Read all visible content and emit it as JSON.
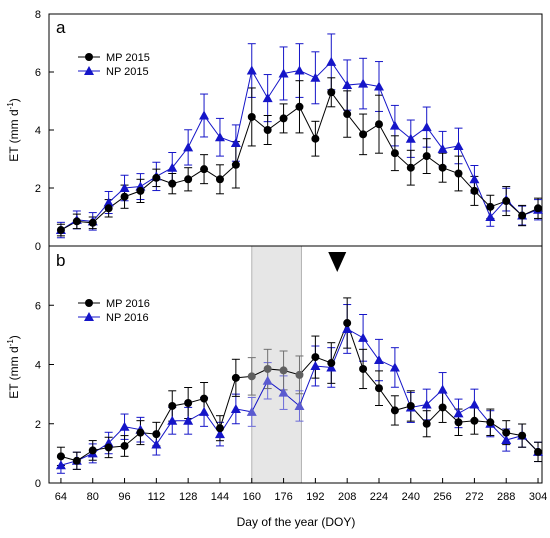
{
  "chart_data": [
    {
      "type": "line",
      "panel_label": "a",
      "ylabel": "ET (mm d-1)",
      "ylabel_main": "ET (mm d",
      "ylabel_sup": "-1",
      "ylabel_close": ")",
      "xlabel": "",
      "ylim": [
        0,
        8
      ],
      "yticks": [
        0,
        2,
        4,
        6,
        8
      ],
      "xlim": [
        58,
        306
      ],
      "legend_position": "top-left",
      "error_bars": true,
      "series": [
        {
          "name": "MP 2015",
          "color": "#000000",
          "marker": "circle",
          "x": [
            64,
            72,
            80,
            88,
            96,
            104,
            112,
            120,
            128,
            136,
            144,
            152,
            160,
            168,
            176,
            184,
            192,
            200,
            208,
            216,
            224,
            232,
            240,
            248,
            256,
            264,
            272,
            280,
            288,
            296,
            304
          ],
          "values": [
            0.55,
            0.85,
            0.8,
            1.3,
            1.7,
            1.9,
            2.35,
            2.15,
            2.3,
            2.65,
            2.3,
            2.8,
            4.45,
            4.0,
            4.4,
            4.8,
            3.7,
            5.3,
            4.55,
            3.85,
            4.2,
            3.2,
            2.7,
            3.1,
            2.7,
            2.5,
            1.9,
            1.35,
            1.55,
            1.05,
            1.3
          ],
          "errors": [
            0.2,
            0.25,
            0.2,
            0.3,
            0.4,
            0.4,
            0.3,
            0.35,
            0.4,
            0.5,
            0.5,
            0.8,
            1.0,
            0.5,
            0.5,
            0.9,
            0.6,
            0.5,
            0.8,
            0.7,
            1.0,
            0.6,
            0.6,
            0.6,
            0.5,
            0.6,
            0.5,
            0.4,
            0.5,
            0.35,
            0.35
          ]
        },
        {
          "name": "NP 2015",
          "color": "#1515c8",
          "marker": "triangle",
          "x": [
            64,
            72,
            80,
            88,
            96,
            104,
            112,
            120,
            128,
            136,
            144,
            152,
            160,
            168,
            176,
            184,
            192,
            200,
            208,
            216,
            224,
            232,
            240,
            248,
            256,
            264,
            272,
            280,
            288,
            296,
            304
          ],
          "values": [
            0.55,
            0.9,
            0.85,
            1.5,
            2.0,
            2.05,
            2.4,
            2.7,
            3.4,
            4.5,
            3.75,
            3.55,
            6.05,
            5.1,
            5.95,
            6.05,
            5.8,
            6.35,
            5.55,
            5.6,
            5.5,
            4.15,
            3.7,
            4.1,
            3.35,
            3.45,
            2.3,
            1.0,
            1.6,
            1.05,
            1.25
          ]
        }
      ]
    },
    {
      "type": "line",
      "panel_label": "b",
      "ylabel": "ET (mm d-1)",
      "ylabel_main": "ET (mm d",
      "ylabel_sup": "-1",
      "ylabel_close": ")",
      "xlabel": "Day of the year (DOY)",
      "ylim": [
        0,
        8
      ],
      "yticks": [
        0,
        2,
        4,
        6
      ],
      "xlim": [
        58,
        306
      ],
      "xticks": [
        64,
        80,
        96,
        112,
        128,
        144,
        160,
        176,
        192,
        208,
        224,
        240,
        256,
        272,
        288,
        304
      ],
      "legend_position": "top-left",
      "error_bars": true,
      "shaded_region": [
        160,
        185
      ],
      "arrow_marker_x": 203,
      "series": [
        {
          "name": "MP 2016",
          "color": "#000000",
          "marker": "circle",
          "x": [
            64,
            72,
            80,
            88,
            96,
            104,
            112,
            120,
            128,
            136,
            144,
            152,
            160,
            168,
            176,
            184,
            192,
            200,
            208,
            216,
            224,
            232,
            240,
            248,
            256,
            264,
            272,
            280,
            288,
            296,
            304
          ],
          "values": [
            0.9,
            0.75,
            1.1,
            1.2,
            1.25,
            1.7,
            1.65,
            2.6,
            2.7,
            2.85,
            1.85,
            3.55,
            3.6,
            3.85,
            3.8,
            3.65,
            4.25,
            4.05,
            5.4,
            3.85,
            3.2,
            2.45,
            2.6,
            2.0,
            2.55,
            2.05,
            2.1,
            2.05,
            1.7,
            1.6,
            1.05
          ]
        },
        {
          "name": "NP 2016",
          "color": "#1515c8",
          "marker": "triangle",
          "x": [
            64,
            72,
            80,
            88,
            96,
            104,
            112,
            120,
            128,
            136,
            144,
            152,
            160,
            168,
            176,
            184,
            192,
            200,
            208,
            216,
            224,
            232,
            240,
            248,
            256,
            264,
            272,
            280,
            288,
            296,
            304
          ],
          "values": [
            0.6,
            0.75,
            1.0,
            1.35,
            1.9,
            1.8,
            1.3,
            2.1,
            2.1,
            2.4,
            1.65,
            2.5,
            2.4,
            3.45,
            3.05,
            2.6,
            3.95,
            3.9,
            5.2,
            4.9,
            4.15,
            3.9,
            2.55,
            2.65,
            3.15,
            2.35,
            2.65,
            2.0,
            1.45,
            1.6,
            1.05
          ]
        }
      ]
    }
  ]
}
